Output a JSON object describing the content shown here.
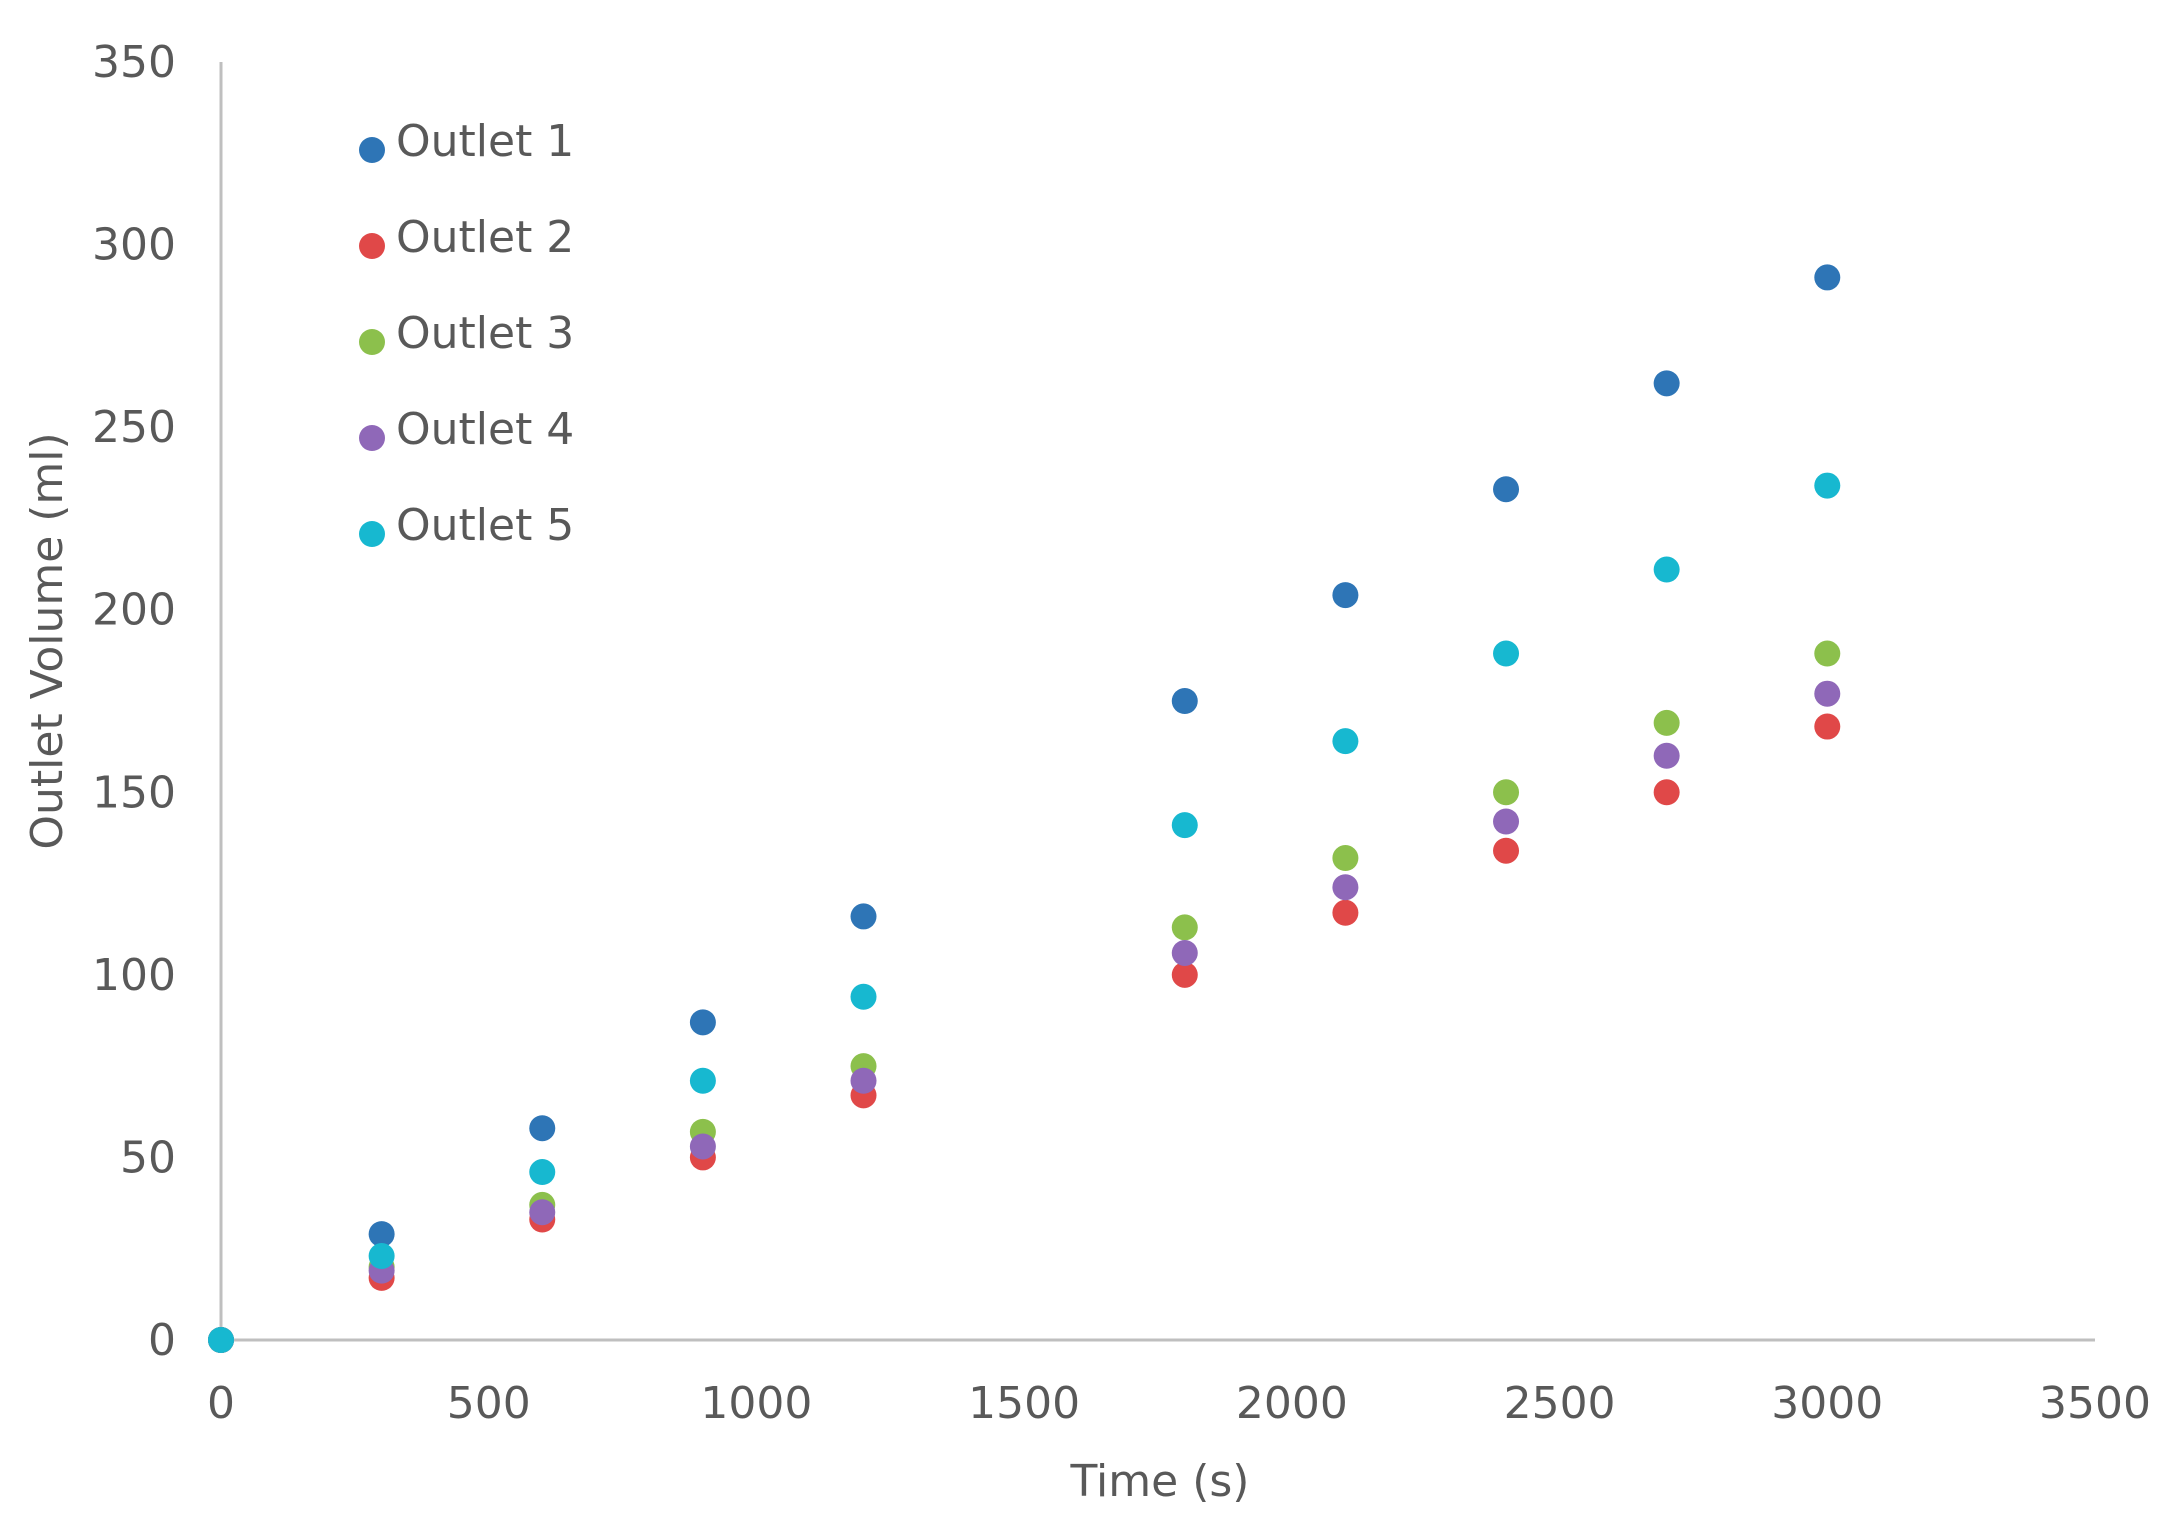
{
  "chart_data": {
    "type": "scatter",
    "title": "",
    "xlabel": "Time (s)",
    "ylabel": "Outlet Volume (ml)",
    "xlim": [
      0,
      3500
    ],
    "ylim": [
      0,
      350
    ],
    "xticks": [
      0,
      500,
      1000,
      1500,
      2000,
      2500,
      3000,
      3500
    ],
    "yticks": [
      0,
      50,
      100,
      150,
      200,
      250,
      300,
      350
    ],
    "grid": false,
    "legend_position": "top-left",
    "x": [
      0,
      300,
      600,
      900,
      1200,
      1800,
      2100,
      2400,
      2700,
      3000
    ],
    "series": [
      {
        "name": "Outlet 1",
        "color": "#2E75B6",
        "values": [
          0,
          29,
          58,
          87,
          116,
          175,
          204,
          233,
          262,
          291
        ]
      },
      {
        "name": "Outlet 2",
        "color": "#E04848",
        "values": [
          0,
          17,
          33,
          50,
          67,
          100,
          117,
          134,
          150,
          168
        ]
      },
      {
        "name": "Outlet 3",
        "color": "#8CC04C",
        "values": [
          0,
          20,
          37,
          57,
          75,
          113,
          132,
          150,
          169,
          188
        ]
      },
      {
        "name": "Outlet 4",
        "color": "#8F68B8",
        "values": [
          0,
          19,
          35,
          53,
          71,
          106,
          124,
          142,
          160,
          177
        ]
      },
      {
        "name": "Outlet 5",
        "color": "#17B8D0",
        "values": [
          0,
          23,
          46,
          71,
          94,
          141,
          164,
          188,
          211,
          234
        ]
      }
    ]
  }
}
